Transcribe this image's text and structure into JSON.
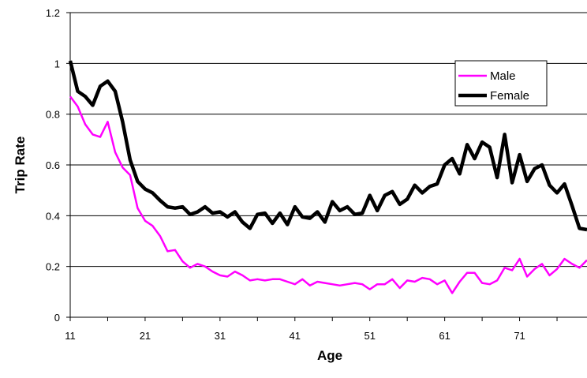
{
  "chart_data": {
    "type": "line",
    "xlabel": "Age",
    "ylabel": "Trip Rate",
    "xlim": [
      11,
      80
    ],
    "ylim": [
      0,
      1.2
    ],
    "x_ticks": [
      "11",
      "21",
      "31",
      "41",
      "51",
      "61",
      "71"
    ],
    "y_ticks": [
      "0",
      "0.2",
      "0.4",
      "0.6",
      "0.8",
      "1",
      "1.2"
    ],
    "grid": "horizontal",
    "legend_position": "top-right",
    "x": [
      11,
      12,
      13,
      14,
      15,
      16,
      17,
      18,
      19,
      20,
      21,
      22,
      23,
      24,
      25,
      26,
      27,
      28,
      29,
      30,
      31,
      32,
      33,
      34,
      35,
      36,
      37,
      38,
      39,
      40,
      41,
      42,
      43,
      44,
      45,
      46,
      47,
      48,
      49,
      50,
      51,
      52,
      53,
      54,
      55,
      56,
      57,
      58,
      59,
      60,
      61,
      62,
      63,
      64,
      65,
      66,
      67,
      68,
      69,
      70,
      71,
      72,
      73,
      74,
      75,
      76,
      77,
      78,
      79,
      80
    ],
    "series": [
      {
        "name": "Male",
        "color": "#ff00ff",
        "values": [
          0.87,
          0.83,
          0.76,
          0.72,
          0.71,
          0.77,
          0.65,
          0.59,
          0.56,
          0.43,
          0.38,
          0.36,
          0.32,
          0.26,
          0.265,
          0.22,
          0.195,
          0.21,
          0.2,
          0.18,
          0.165,
          0.16,
          0.18,
          0.165,
          0.145,
          0.15,
          0.145,
          0.15,
          0.15,
          0.14,
          0.13,
          0.15,
          0.125,
          0.14,
          0.135,
          0.13,
          0.125,
          0.13,
          0.135,
          0.13,
          0.11,
          0.13,
          0.13,
          0.15,
          0.115,
          0.145,
          0.14,
          0.155,
          0.15,
          0.13,
          0.145,
          0.095,
          0.14,
          0.175,
          0.175,
          0.135,
          0.13,
          0.145,
          0.195,
          0.185,
          0.23,
          0.16,
          0.19,
          0.21,
          0.165,
          0.19,
          0.23,
          0.21,
          0.195,
          0.225
        ]
      },
      {
        "name": "Female",
        "color": "#000000",
        "values": [
          1.01,
          0.89,
          0.87,
          0.835,
          0.91,
          0.93,
          0.89,
          0.77,
          0.62,
          0.535,
          0.505,
          0.49,
          0.46,
          0.435,
          0.43,
          0.435,
          0.405,
          0.415,
          0.435,
          0.41,
          0.415,
          0.395,
          0.415,
          0.375,
          0.35,
          0.405,
          0.41,
          0.37,
          0.41,
          0.365,
          0.435,
          0.395,
          0.39,
          0.415,
          0.375,
          0.455,
          0.42,
          0.435,
          0.405,
          0.41,
          0.48,
          0.42,
          0.48,
          0.495,
          0.445,
          0.465,
          0.52,
          0.49,
          0.515,
          0.525,
          0.6,
          0.625,
          0.565,
          0.68,
          0.625,
          0.69,
          0.67,
          0.55,
          0.72,
          0.53,
          0.64,
          0.535,
          0.585,
          0.6,
          0.52,
          0.49,
          0.525,
          0.44,
          0.35,
          0.345
        ]
      }
    ]
  }
}
